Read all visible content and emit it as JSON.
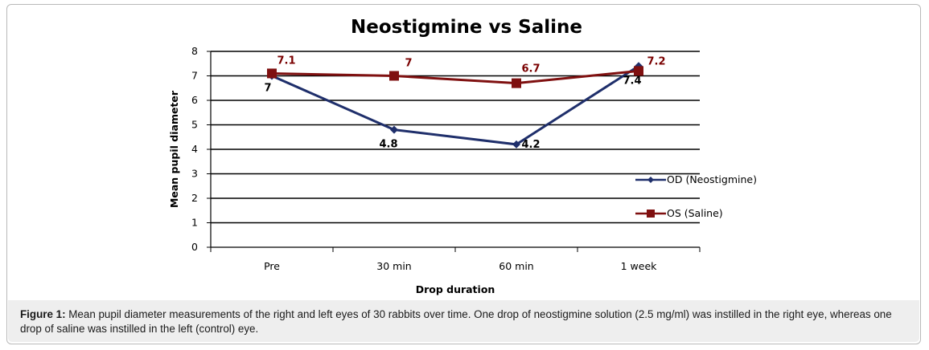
{
  "chart_data": {
    "type": "line",
    "title": "Neostigmine vs Saline",
    "xlabel": "Drop duration",
    "ylabel": "Mean pupil diameter",
    "categories": [
      "Pre",
      "30 min",
      "60 min",
      "1 week"
    ],
    "ylim": [
      0,
      8
    ],
    "yticks": [
      0,
      1,
      2,
      3,
      4,
      5,
      6,
      7,
      8
    ],
    "grid": true,
    "legend_position": "right",
    "series": [
      {
        "name": "OD (Neostigmine)",
        "values": [
          7,
          4.8,
          4.2,
          7.4
        ],
        "labels": [
          "7",
          "4.8",
          "4.2",
          "7.4"
        ],
        "color": "#1f2f6b",
        "marker": "diamond"
      },
      {
        "name": "OS (Saline)",
        "values": [
          7.1,
          7,
          6.7,
          7.2
        ],
        "labels": [
          "7.1",
          "7",
          "6.7",
          "7.2"
        ],
        "color": "#7f1010",
        "marker": "square"
      }
    ]
  },
  "caption": {
    "label": "Figure 1:",
    "text": " Mean pupil diameter measurements of the right and left eyes of 30 rabbits over time.  One drop of neostigmine solution (2.5 mg/ml) was instilled in the right eye, whereas one drop of saline was instilled in the left (control) eye."
  }
}
